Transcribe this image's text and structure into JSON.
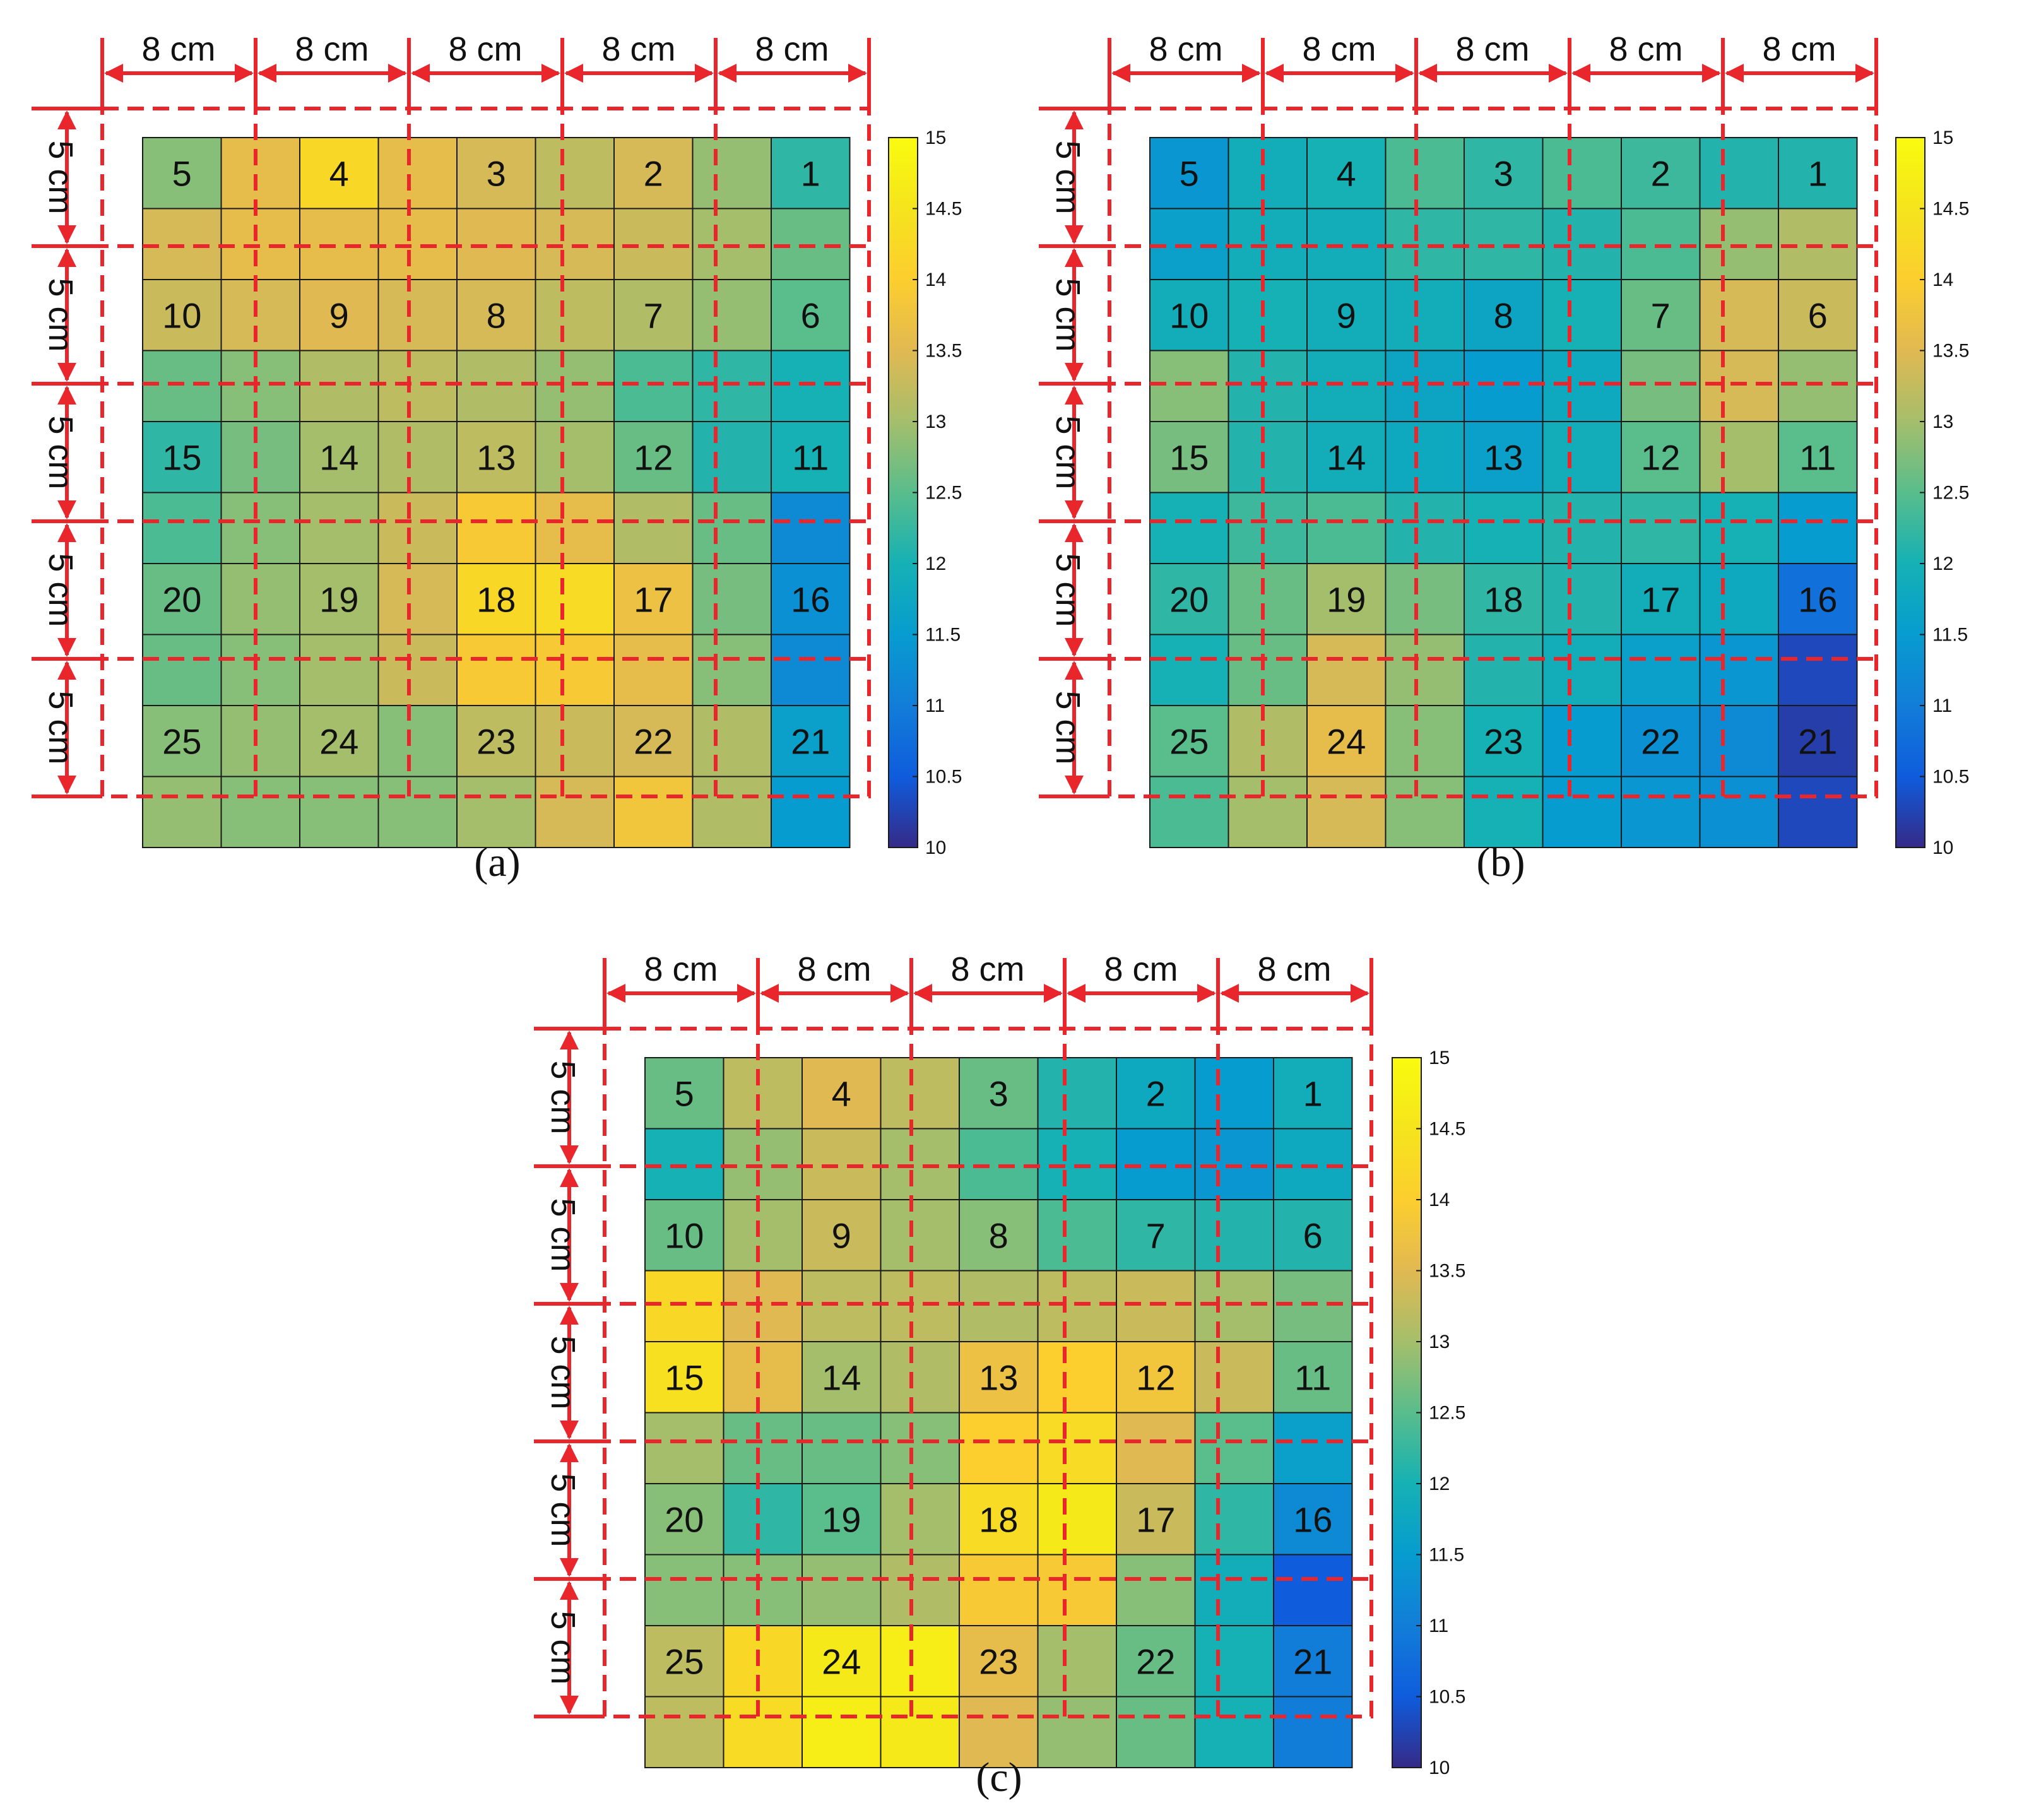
{
  "figure": {
    "panel_labels": [
      "(a)",
      "(b)",
      "(c)"
    ]
  },
  "dimensions": {
    "horizontal_label": "8 cm",
    "vertical_label": "5 cm",
    "annotation_color": "#e8262c"
  },
  "colorbar": {
    "min": 10,
    "max": 15,
    "ticks": [
      "15",
      "14.5",
      "14",
      "13.5",
      "13",
      "12.5",
      "12",
      "11.5",
      "11",
      "10.5",
      "10"
    ],
    "colormap": "parula"
  },
  "chart_data": [
    {
      "type": "heatmap",
      "panel": "(a)",
      "rows": 10,
      "cols": 9,
      "value_range": [
        10,
        15
      ],
      "labels": [
        {
          "text": "5",
          "row": 0,
          "col": 0
        },
        {
          "text": "4",
          "row": 0,
          "col": 2
        },
        {
          "text": "3",
          "row": 0,
          "col": 4
        },
        {
          "text": "2",
          "row": 0,
          "col": 6
        },
        {
          "text": "1",
          "row": 0,
          "col": 8
        },
        {
          "text": "10",
          "row": 2,
          "col": 0
        },
        {
          "text": "9",
          "row": 2,
          "col": 2
        },
        {
          "text": "8",
          "row": 2,
          "col": 4
        },
        {
          "text": "7",
          "row": 2,
          "col": 6
        },
        {
          "text": "6",
          "row": 2,
          "col": 8
        },
        {
          "text": "15",
          "row": 4,
          "col": 0
        },
        {
          "text": "14",
          "row": 4,
          "col": 2
        },
        {
          "text": "13",
          "row": 4,
          "col": 4
        },
        {
          "text": "12",
          "row": 4,
          "col": 6
        },
        {
          "text": "11",
          "row": 4,
          "col": 8
        },
        {
          "text": "20",
          "row": 6,
          "col": 0
        },
        {
          "text": "19",
          "row": 6,
          "col": 2
        },
        {
          "text": "18",
          "row": 6,
          "col": 4
        },
        {
          "text": "17",
          "row": 6,
          "col": 6
        },
        {
          "text": "16",
          "row": 6,
          "col": 8
        },
        {
          "text": "25",
          "row": 8,
          "col": 0
        },
        {
          "text": "24",
          "row": 8,
          "col": 2
        },
        {
          "text": "23",
          "row": 8,
          "col": 4
        },
        {
          "text": "22",
          "row": 8,
          "col": 6
        },
        {
          "text": "21",
          "row": 8,
          "col": 8
        }
      ],
      "values": [
        [
          12.8,
          13.6,
          14.2,
          13.6,
          13.4,
          13.2,
          13.4,
          12.9,
          12.2
        ],
        [
          13.4,
          13.6,
          13.6,
          13.6,
          13.5,
          13.4,
          13.3,
          13.0,
          12.6
        ],
        [
          13.3,
          13.4,
          13.5,
          13.4,
          13.4,
          13.2,
          13.1,
          12.9,
          12.5
        ],
        [
          12.6,
          12.8,
          13.1,
          13.2,
          13.1,
          12.9,
          12.4,
          12.2,
          12.0
        ],
        [
          12.2,
          12.7,
          13.0,
          13.1,
          13.2,
          13.0,
          12.6,
          12.1,
          12.0
        ],
        [
          12.4,
          12.8,
          13.0,
          13.3,
          13.9,
          13.6,
          13.1,
          12.6,
          11.2
        ],
        [
          12.6,
          12.9,
          13.0,
          13.4,
          14.2,
          14.3,
          13.7,
          12.7,
          11.3
        ],
        [
          12.6,
          12.8,
          13.0,
          13.3,
          13.9,
          13.9,
          13.6,
          12.8,
          11.2
        ],
        [
          12.8,
          12.9,
          13.0,
          12.8,
          13.2,
          13.3,
          13.4,
          13.1,
          11.6
        ],
        [
          12.9,
          12.8,
          12.8,
          12.8,
          13.0,
          13.4,
          13.8,
          13.1,
          11.5
        ]
      ]
    },
    {
      "type": "heatmap",
      "panel": "(b)",
      "rows": 10,
      "cols": 9,
      "value_range": [
        10,
        15
      ],
      "labels": [
        {
          "text": "5",
          "row": 0,
          "col": 0
        },
        {
          "text": "4",
          "row": 0,
          "col": 2
        },
        {
          "text": "3",
          "row": 0,
          "col": 4
        },
        {
          "text": "2",
          "row": 0,
          "col": 6
        },
        {
          "text": "1",
          "row": 0,
          "col": 8
        },
        {
          "text": "10",
          "row": 2,
          "col": 0
        },
        {
          "text": "9",
          "row": 2,
          "col": 2
        },
        {
          "text": "8",
          "row": 2,
          "col": 4
        },
        {
          "text": "7",
          "row": 2,
          "col": 6
        },
        {
          "text": "6",
          "row": 2,
          "col": 8
        },
        {
          "text": "15",
          "row": 4,
          "col": 0
        },
        {
          "text": "14",
          "row": 4,
          "col": 2
        },
        {
          "text": "13",
          "row": 4,
          "col": 4
        },
        {
          "text": "12",
          "row": 4,
          "col": 6
        },
        {
          "text": "11",
          "row": 4,
          "col": 8
        },
        {
          "text": "20",
          "row": 6,
          "col": 0
        },
        {
          "text": "19",
          "row": 6,
          "col": 2
        },
        {
          "text": "18",
          "row": 6,
          "col": 4
        },
        {
          "text": "17",
          "row": 6,
          "col": 6
        },
        {
          "text": "16",
          "row": 6,
          "col": 8
        },
        {
          "text": "25",
          "row": 8,
          "col": 0
        },
        {
          "text": "24",
          "row": 8,
          "col": 2
        },
        {
          "text": "23",
          "row": 8,
          "col": 4
        },
        {
          "text": "22",
          "row": 8,
          "col": 6
        },
        {
          "text": "21",
          "row": 8,
          "col": 8
        }
      ],
      "values": [
        [
          11.4,
          11.9,
          12.0,
          12.4,
          12.2,
          12.4,
          12.3,
          12.1,
          12.1
        ],
        [
          11.6,
          11.9,
          11.9,
          12.2,
          12.2,
          12.1,
          12.4,
          12.9,
          13.1
        ],
        [
          11.9,
          12.0,
          11.9,
          11.9,
          11.7,
          12.0,
          12.6,
          13.4,
          13.3
        ],
        [
          12.8,
          12.1,
          11.9,
          11.7,
          11.5,
          11.8,
          12.7,
          13.4,
          12.9
        ],
        [
          12.7,
          12.1,
          11.9,
          11.8,
          11.6,
          11.9,
          12.5,
          13.0,
          12.5
        ],
        [
          12.0,
          12.3,
          12.4,
          12.1,
          12.0,
          12.1,
          12.2,
          12.0,
          11.5
        ],
        [
          12.2,
          12.6,
          13.0,
          12.7,
          12.2,
          12.1,
          11.9,
          11.8,
          10.8
        ],
        [
          12.0,
          12.6,
          13.4,
          12.9,
          12.1,
          11.9,
          11.6,
          11.4,
          10.3
        ],
        [
          12.5,
          13.1,
          13.6,
          12.8,
          12.0,
          11.5,
          11.3,
          11.2,
          10.2
        ],
        [
          12.4,
          13.0,
          13.4,
          12.8,
          12.0,
          11.5,
          11.4,
          11.3,
          10.3
        ]
      ]
    },
    {
      "type": "heatmap",
      "panel": "(c)",
      "rows": 10,
      "cols": 9,
      "value_range": [
        10,
        15
      ],
      "labels": [
        {
          "text": "5",
          "row": 0,
          "col": 0
        },
        {
          "text": "4",
          "row": 0,
          "col": 2
        },
        {
          "text": "3",
          "row": 0,
          "col": 4
        },
        {
          "text": "2",
          "row": 0,
          "col": 6
        },
        {
          "text": "1",
          "row": 0,
          "col": 8
        },
        {
          "text": "10",
          "row": 2,
          "col": 0
        },
        {
          "text": "9",
          "row": 2,
          "col": 2
        },
        {
          "text": "8",
          "row": 2,
          "col": 4
        },
        {
          "text": "7",
          "row": 2,
          "col": 6
        },
        {
          "text": "6",
          "row": 2,
          "col": 8
        },
        {
          "text": "15",
          "row": 4,
          "col": 0
        },
        {
          "text": "14",
          "row": 4,
          "col": 2
        },
        {
          "text": "13",
          "row": 4,
          "col": 4
        },
        {
          "text": "12",
          "row": 4,
          "col": 6
        },
        {
          "text": "11",
          "row": 4,
          "col": 8
        },
        {
          "text": "20",
          "row": 6,
          "col": 0
        },
        {
          "text": "19",
          "row": 6,
          "col": 2
        },
        {
          "text": "18",
          "row": 6,
          "col": 4
        },
        {
          "text": "17",
          "row": 6,
          "col": 6
        },
        {
          "text": "16",
          "row": 6,
          "col": 8
        },
        {
          "text": "25",
          "row": 8,
          "col": 0
        },
        {
          "text": "24",
          "row": 8,
          "col": 2
        },
        {
          "text": "23",
          "row": 8,
          "col": 4
        },
        {
          "text": "22",
          "row": 8,
          "col": 6
        },
        {
          "text": "21",
          "row": 8,
          "col": 8
        }
      ],
      "values": [
        [
          12.6,
          13.2,
          13.5,
          13.2,
          12.6,
          12.1,
          11.8,
          11.5,
          11.9
        ],
        [
          12.0,
          12.9,
          13.3,
          13.0,
          12.4,
          12.0,
          11.5,
          11.4,
          11.8
        ],
        [
          12.6,
          13.0,
          13.3,
          13.0,
          12.8,
          12.4,
          12.2,
          12.1,
          12.1
        ],
        [
          14.2,
          13.5,
          13.2,
          13.2,
          13.1,
          13.2,
          13.3,
          13.0,
          12.7
        ],
        [
          14.4,
          13.6,
          13.0,
          13.1,
          13.7,
          14.0,
          13.8,
          13.3,
          12.6
        ],
        [
          13.0,
          12.6,
          12.6,
          12.8,
          14.0,
          14.3,
          13.5,
          12.5,
          11.6
        ],
        [
          12.8,
          12.2,
          12.5,
          13.0,
          14.3,
          14.6,
          13.3,
          12.2,
          11.2
        ],
        [
          12.8,
          12.8,
          12.9,
          13.1,
          13.9,
          13.9,
          12.8,
          11.9,
          10.5
        ],
        [
          13.2,
          14.2,
          14.6,
          14.7,
          13.6,
          13.0,
          12.6,
          12.0,
          11.0
        ],
        [
          13.2,
          14.3,
          14.7,
          14.6,
          13.5,
          12.9,
          12.6,
          12.0,
          11.0
        ]
      ]
    }
  ]
}
